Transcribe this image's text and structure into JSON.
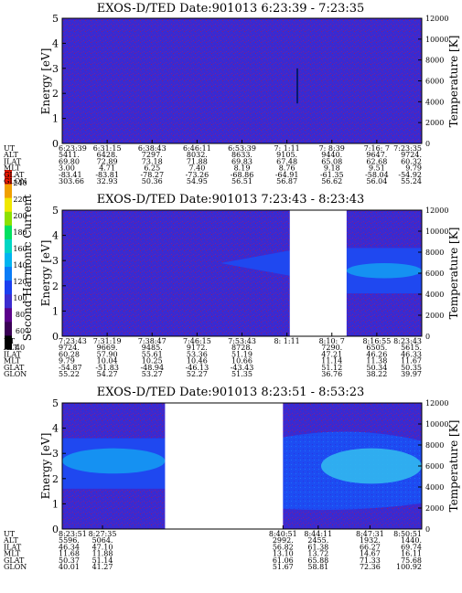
{
  "figure": {
    "colorbar": {
      "label": "Second Harmonic Current",
      "ticks": [
        "40",
        "60",
        "80",
        "100",
        "120",
        "140",
        "160",
        "180",
        "200",
        "220",
        "240"
      ],
      "colors": [
        "#000000",
        "#3a0055",
        "#5a008a",
        "#3c2ccf",
        "#1a3ff0",
        "#0a7cf7",
        "#00b4f0",
        "#00d6c4",
        "#00e060",
        "#8de000",
        "#f0e800",
        "#f0a000",
        "#e81800"
      ]
    }
  },
  "chart_data": [
    {
      "type": "heatmap",
      "title": "EXOS-D/TED   Date:901013  6:23:39 - 7:23:35",
      "ylabel": "Energy [eV]",
      "ylabel_right": "Temperature [K]",
      "ylim": [
        0,
        5
      ],
      "ylim_right": [
        0,
        12000
      ],
      "yticks": [
        "0",
        "1",
        "2",
        "3",
        "4",
        "5"
      ],
      "yticks_right": [
        "0",
        "2000",
        "4000",
        "6000",
        "8000",
        "10000",
        "12000"
      ],
      "data_gaps": [],
      "features": {
        "background_level": 80,
        "bands": [],
        "spike": {
          "time": "7:2:0",
          "energy_range": [
            1.6,
            3.0
          ],
          "color": "#001a70"
        }
      },
      "ephemeris": {
        "row_labels": [
          "UT",
          "ALT",
          "ILAT",
          "MLT",
          "GLAT",
          "GLON"
        ],
        "columns": [
          [
            "6:23:39",
            "5411.",
            "69.80",
            "3.00",
            "-83.41",
            "303.66"
          ],
          [
            "6:31:15",
            "6428.",
            "72.89",
            "4.71",
            "-83.81",
            "32.93"
          ],
          [
            "6:38:43",
            "7297.",
            "73.18",
            "6.25",
            "-78.27",
            "50.36"
          ],
          [
            "6:46:11",
            "8032.",
            "71.88",
            "7.40",
            "-73.26",
            "54.95"
          ],
          [
            "6:53:39",
            "8633.",
            "69.83",
            "8.19",
            "-68.86",
            "56.51"
          ],
          [
            "7: 1:11",
            "9105.",
            "67.48",
            "8.76",
            "-64.91",
            "56.87"
          ],
          [
            "7: 8:39",
            "9440.",
            "65.08",
            "9.18",
            "-61.35",
            "56.62"
          ],
          [
            "7:16: 7",
            "9647.",
            "62.68",
            "9.51",
            "-58.04",
            "56.04"
          ],
          [
            "7:23:35",
            "9724.",
            "60.32",
            "9.79",
            "-54.92",
            "55.24"
          ]
        ]
      }
    },
    {
      "type": "heatmap",
      "title": "EXOS-D/TED   Date:901013  7:23:43 - 8:23:43",
      "ylabel": "Energy [eV]",
      "ylabel_right": "Temperature [K]",
      "ylim": [
        0,
        5
      ],
      "ylim_right": [
        0,
        12000
      ],
      "yticks": [
        "0",
        "1",
        "2",
        "3",
        "4",
        "5"
      ],
      "yticks_right": [
        "0",
        "2000",
        "4000",
        "6000",
        "8000",
        "10000",
        "12000"
      ],
      "data_gaps": [
        [
          0.633,
          0.791
        ]
      ],
      "features": {
        "background_level": 80,
        "bands": [
          {
            "x_range": [
              0.44,
              0.633
            ],
            "energy_range": [
              2.4,
              3.4
            ],
            "level": 120,
            "shape": "wedge"
          },
          {
            "x_range": [
              0.791,
              1.0
            ],
            "energy_range": [
              1.7,
              3.5
            ],
            "level": 120,
            "shape": "band"
          },
          {
            "x_range": [
              0.791,
              1.0
            ],
            "energy_range": [
              2.3,
              2.9
            ],
            "level": 140,
            "shape": "core"
          }
        ]
      },
      "ephemeris": {
        "row_labels": [
          "UT",
          "ALT",
          "ILAT",
          "MLT",
          "GLAT",
          "GLON"
        ],
        "columns": [
          [
            "7:23:43",
            "9724.",
            "60.28",
            "9.79",
            "-54.87",
            "55.22"
          ],
          [
            "7:31:19",
            "9669.",
            "57.90",
            "10.04",
            "-51.83",
            "54.27"
          ],
          [
            "7:38:47",
            "9485.",
            "55.61",
            "10.25",
            "-48.94",
            "53.27"
          ],
          [
            "7:46:15",
            "9172.",
            "53.36",
            "10.46",
            "-46.13",
            "52.27"
          ],
          [
            "7:53:43",
            "8728.",
            "51.19",
            "10.66",
            "-43.43",
            "51.35"
          ],
          [
            "8: 1:11",
            "",
            "",
            "",
            "",
            ""
          ],
          [
            "8:10: 7",
            "7290.",
            "47.21",
            "11.14",
            "51.12",
            "36.76"
          ],
          [
            "8:16:55",
            "6505.",
            "46.26",
            "11.38",
            "50.34",
            "38.22"
          ],
          [
            "8:23:43",
            "5615.",
            "46.33",
            "11.67",
            "50.35",
            "39.97"
          ]
        ]
      }
    },
    {
      "type": "heatmap",
      "title": "EXOS-D/TED   Date:901013  8:23:51 - 8:53:23",
      "ylabel": "Energy [eV]",
      "ylabel_right": "Temperature [K]",
      "ylim": [
        0,
        5
      ],
      "ylim_right": [
        0,
        12000
      ],
      "yticks": [
        "0",
        "1",
        "2",
        "3",
        "4",
        "5"
      ],
      "yticks_right": [
        "0",
        "2000",
        "4000",
        "6000",
        "8000",
        "10000",
        "12000"
      ],
      "data_gaps": [
        [
          0.286,
          0.614
        ]
      ],
      "features": {
        "background_level": 80,
        "bands": [
          {
            "x_range": [
              0.0,
              0.286
            ],
            "energy_range": [
              1.6,
              3.6
            ],
            "level": 120,
            "shape": "band"
          },
          {
            "x_range": [
              0.0,
              0.286
            ],
            "energy_range": [
              2.2,
              3.2
            ],
            "level": 140,
            "shape": "core"
          },
          {
            "x_range": [
              0.614,
              1.0
            ],
            "energy_range": [
              0.8,
              4.0
            ],
            "level": 120,
            "shape": "wide"
          },
          {
            "x_range": [
              0.72,
              1.0
            ],
            "energy_range": [
              1.8,
              3.2
            ],
            "level": 150,
            "shape": "core"
          }
        ]
      },
      "ephemeris": {
        "row_labels": [
          "UT",
          "ALT",
          "ILAT",
          "MLT",
          "GLAT",
          "GLON"
        ],
        "columns": [
          [
            "8:23:51",
            "5596.",
            "46.34",
            "11.68",
            "50.37",
            "40.01"
          ],
          [
            "8:27:35",
            "5064.",
            "47.10",
            "11.88",
            "51.14",
            "41.27"
          ],
          [
            "8:40:51",
            "2992.",
            "56.82",
            "13.10",
            "61.06",
            "51.67"
          ],
          [
            "8:44:11",
            "2455.",
            "61.38",
            "13.72",
            "65.88",
            "58.81"
          ],
          [
            "8:47:31",
            "1932.",
            "66.27",
            "14.67",
            "71.33",
            "72.36"
          ],
          [
            "8:50:51",
            "1440.",
            "69.74",
            "16.11",
            "75.68",
            "100.92"
          ]
        ]
      }
    }
  ]
}
